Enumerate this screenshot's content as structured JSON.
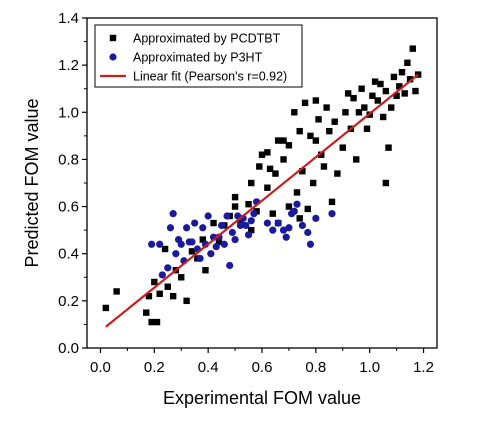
{
  "chart_data": {
    "type": "scatter",
    "xlabel": "Experimental FOM value",
    "ylabel": "Predicted FOM value",
    "xlim": [
      -0.05,
      1.25
    ],
    "ylim": [
      0.0,
      1.4
    ],
    "xticks": [
      "0.0",
      "0.2",
      "0.4",
      "0.6",
      "0.8",
      "1.0",
      "1.2"
    ],
    "yticks": [
      "0.0",
      "0.2",
      "0.4",
      "0.6",
      "0.8",
      "1.0",
      "1.2",
      "1.4"
    ],
    "grid": false,
    "legend_position": "top-left",
    "series": [
      {
        "name": "Approximated by PCDTBT",
        "marker": "square",
        "color": "#000000",
        "points": [
          [
            0.02,
            0.17
          ],
          [
            0.06,
            0.24
          ],
          [
            0.17,
            0.15
          ],
          [
            0.19,
            0.11
          ],
          [
            0.18,
            0.22
          ],
          [
            0.2,
            0.28
          ],
          [
            0.21,
            0.11
          ],
          [
            0.22,
            0.23
          ],
          [
            0.24,
            0.42
          ],
          [
            0.25,
            0.26
          ],
          [
            0.27,
            0.22
          ],
          [
            0.28,
            0.33
          ],
          [
            0.3,
            0.3
          ],
          [
            0.32,
            0.2
          ],
          [
            0.34,
            0.41
          ],
          [
            0.36,
            0.38
          ],
          [
            0.38,
            0.46
          ],
          [
            0.39,
            0.33
          ],
          [
            0.42,
            0.53
          ],
          [
            0.44,
            0.45
          ],
          [
            0.46,
            0.52
          ],
          [
            0.48,
            0.56
          ],
          [
            0.5,
            0.6
          ],
          [
            0.5,
            0.64
          ],
          [
            0.52,
            0.54
          ],
          [
            0.55,
            0.61
          ],
          [
            0.56,
            0.5
          ],
          [
            0.58,
            0.58
          ],
          [
            0.59,
            0.77
          ],
          [
            0.6,
            0.82
          ],
          [
            0.62,
            0.68
          ],
          [
            0.63,
            0.76
          ],
          [
            0.64,
            0.57
          ],
          [
            0.65,
            0.74
          ],
          [
            0.66,
            0.88
          ],
          [
            0.68,
            0.8
          ],
          [
            0.7,
            0.86
          ],
          [
            0.72,
            1.0
          ],
          [
            0.73,
            0.66
          ],
          [
            0.74,
            0.92
          ],
          [
            0.75,
            0.75
          ],
          [
            0.76,
            1.04
          ],
          [
            0.77,
            0.59
          ],
          [
            0.78,
            0.9
          ],
          [
            0.79,
            0.7
          ],
          [
            0.8,
            0.88
          ],
          [
            0.81,
            0.97
          ],
          [
            0.82,
            0.82
          ],
          [
            0.83,
            0.77
          ],
          [
            0.84,
            1.02
          ],
          [
            0.85,
            0.92
          ],
          [
            0.86,
            0.62
          ],
          [
            0.87,
            0.96
          ],
          [
            0.88,
            0.74
          ],
          [
            0.9,
            0.85
          ],
          [
            0.91,
            1.0
          ],
          [
            0.92,
            1.08
          ],
          [
            0.93,
            0.93
          ],
          [
            0.94,
            1.06
          ],
          [
            0.95,
            0.8
          ],
          [
            0.96,
            1.0
          ],
          [
            0.97,
            1.1
          ],
          [
            0.98,
            1.02
          ],
          [
            0.99,
            0.93
          ],
          [
            1.0,
            0.99
          ],
          [
            1.01,
            1.07
          ],
          [
            1.02,
            1.13
          ],
          [
            1.03,
            1.05
          ],
          [
            1.04,
            1.12
          ],
          [
            1.05,
            0.98
          ],
          [
            1.06,
            1.09
          ],
          [
            1.07,
            0.85
          ],
          [
            1.08,
            1.02
          ],
          [
            1.09,
            1.15
          ],
          [
            1.1,
            1.07
          ],
          [
            1.11,
            1.11
          ],
          [
            1.12,
            1.17
          ],
          [
            1.13,
            1.08
          ],
          [
            1.14,
            1.21
          ],
          [
            1.15,
            1.14
          ],
          [
            1.16,
            1.27
          ],
          [
            1.17,
            1.09
          ],
          [
            1.18,
            1.16
          ],
          [
            1.06,
            0.7
          ],
          [
            0.66,
            0.53
          ],
          [
            0.56,
            0.7
          ],
          [
            0.7,
            0.6
          ],
          [
            0.74,
            0.55
          ],
          [
            0.8,
            1.05
          ],
          [
            0.68,
            0.88
          ],
          [
            0.62,
            0.83
          ]
        ]
      },
      {
        "name": "Approximated by P3HT",
        "marker": "circle",
        "color": "#1a1a9c",
        "points": [
          [
            0.19,
            0.44
          ],
          [
            0.22,
            0.44
          ],
          [
            0.23,
            0.31
          ],
          [
            0.25,
            0.34
          ],
          [
            0.26,
            0.51
          ],
          [
            0.27,
            0.57
          ],
          [
            0.28,
            0.4
          ],
          [
            0.29,
            0.46
          ],
          [
            0.3,
            0.44
          ],
          [
            0.31,
            0.37
          ],
          [
            0.32,
            0.51
          ],
          [
            0.33,
            0.45
          ],
          [
            0.34,
            0.45
          ],
          [
            0.35,
            0.53
          ],
          [
            0.36,
            0.42
          ],
          [
            0.37,
            0.38
          ],
          [
            0.38,
            0.51
          ],
          [
            0.39,
            0.44
          ],
          [
            0.4,
            0.56
          ],
          [
            0.41,
            0.4
          ],
          [
            0.42,
            0.47
          ],
          [
            0.43,
            0.43
          ],
          [
            0.44,
            0.47
          ],
          [
            0.45,
            0.52
          ],
          [
            0.46,
            0.44
          ],
          [
            0.47,
            0.56
          ],
          [
            0.48,
            0.35
          ],
          [
            0.49,
            0.49
          ],
          [
            0.5,
            0.46
          ],
          [
            0.51,
            0.56
          ],
          [
            0.52,
            0.52
          ],
          [
            0.53,
            0.55
          ],
          [
            0.54,
            0.52
          ],
          [
            0.55,
            0.48
          ],
          [
            0.56,
            0.54
          ],
          [
            0.57,
            0.57
          ],
          [
            0.58,
            0.62
          ],
          [
            0.62,
            0.53
          ],
          [
            0.64,
            0.5
          ],
          [
            0.66,
            0.53
          ],
          [
            0.68,
            0.5
          ],
          [
            0.69,
            0.47
          ],
          [
            0.7,
            0.51
          ],
          [
            0.71,
            0.57
          ],
          [
            0.72,
            0.58
          ],
          [
            0.73,
            0.61
          ],
          [
            0.75,
            0.52
          ],
          [
            0.77,
            0.49
          ],
          [
            0.78,
            0.44
          ],
          [
            0.8,
            0.55
          ],
          [
            0.86,
            0.57
          ]
        ]
      }
    ],
    "fit": {
      "name": "Linear fit (Pearson's r=0.92)",
      "color": "#cc1c1c",
      "start": [
        0.02,
        0.09
      ],
      "end": [
        1.18,
        1.16
      ]
    }
  }
}
